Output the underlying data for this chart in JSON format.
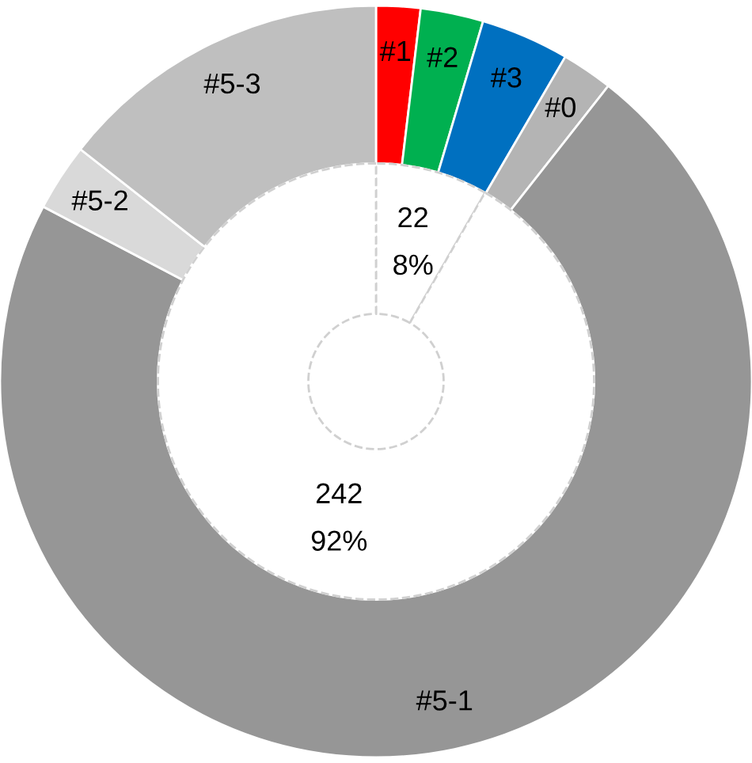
{
  "chart_data": {
    "type": "donut",
    "categories": [
      "#1",
      "#2",
      "#3",
      "#0",
      "#5-1",
      "#5-2",
      "#5-3",
      null,
      null
    ],
    "series": [
      {
        "values": [
          1.9,
          2.7,
          3.8,
          2.2,
          72.1,
          2.9,
          14.4,
          null,
          null
        ],
        "colors": [
          "#ff0000",
          "#00b050",
          "#0070c0",
          "#b4b4b4",
          "#969696",
          "#d9d9d9",
          "#bfbfbf",
          null,
          null
        ]
      },
      {
        "values": [
          null,
          null,
          null,
          null,
          null,
          null,
          null,
          22,
          242
        ],
        "colors": [
          null,
          null,
          null,
          null,
          null,
          null,
          null,
          "#ffffff",
          "#ffffff"
        ],
        "value_labels": [
          null,
          null,
          null,
          null,
          null,
          null,
          null,
          "22\n8%",
          "242\n92%"
        ]
      }
    ]
  }
}
